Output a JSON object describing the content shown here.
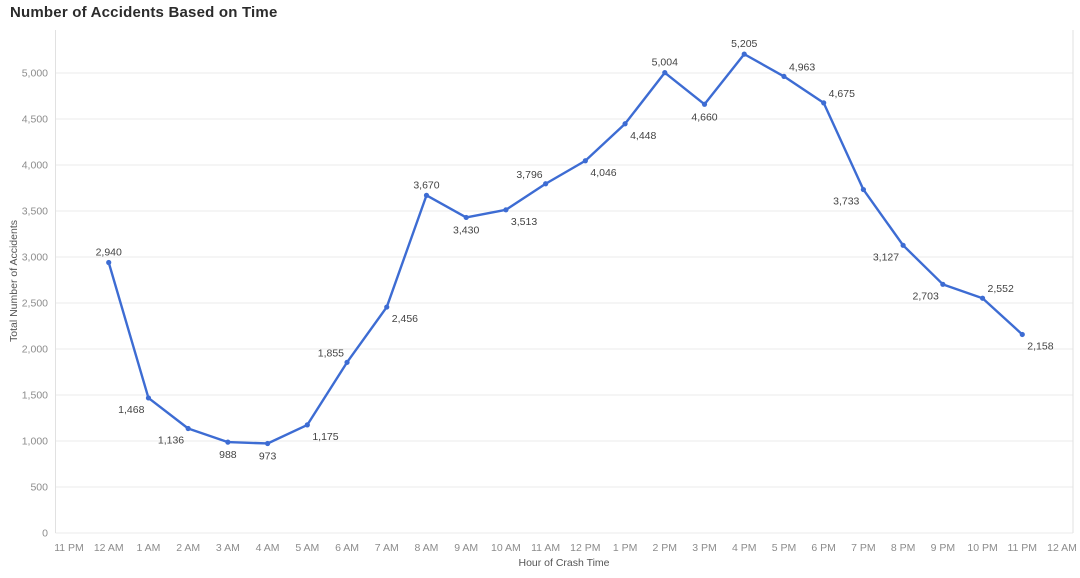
{
  "chart_data": {
    "type": "line",
    "title": "Number of Accidents Based on Time",
    "xlabel": "Hour of Crash Time",
    "ylabel": "Total Number of Accidents",
    "categories": [
      "12 AM",
      "1 AM",
      "2 AM",
      "3 AM",
      "4 AM",
      "5 AM",
      "6 AM",
      "7 AM",
      "8 AM",
      "9 AM",
      "10 AM",
      "11 AM",
      "12 PM",
      "1 PM",
      "2 PM",
      "3 PM",
      "4 PM",
      "5 PM",
      "6 PM",
      "7 PM",
      "8 PM",
      "9 PM",
      "10 PM",
      "11 PM"
    ],
    "values": [
      2940,
      1468,
      1136,
      988,
      973,
      1175,
      1855,
      2456,
      3670,
      3430,
      3513,
      3796,
      4046,
      4448,
      5004,
      4660,
      5205,
      4963,
      4675,
      3733,
      3127,
      2703,
      2552,
      2158
    ],
    "value_labels": [
      "2,940",
      "1,468",
      "1,136",
      "988",
      "973",
      "1,175",
      "1,855",
      "2,456",
      "3,670",
      "3,430",
      "3,513",
      "3,796",
      "4,046",
      "4,448",
      "5,004",
      "4,660",
      "5,205",
      "4,963",
      "4,675",
      "3,733",
      "3,127",
      "2,703",
      "2,552",
      "2,158"
    ],
    "x_axis_ticks": [
      "11 PM",
      "12 AM",
      "1 AM",
      "2 AM",
      "3 AM",
      "4 AM",
      "5 AM",
      "6 AM",
      "7 AM",
      "8 AM",
      "9 AM",
      "10 AM",
      "11 AM",
      "12 PM",
      "1 PM",
      "2 PM",
      "3 PM",
      "4 PM",
      "5 PM",
      "6 PM",
      "7 PM",
      "8 PM",
      "9 PM",
      "10 PM",
      "11 PM",
      "12 AM"
    ],
    "y_tick_labels": [
      "0",
      "500",
      "1,000",
      "1,500",
      "2,000",
      "2,500",
      "3,000",
      "3,500",
      "4,000",
      "4,500",
      "5,000"
    ],
    "y_tick_values": [
      0,
      500,
      1000,
      1500,
      2000,
      2500,
      3000,
      3500,
      4000,
      4500,
      5000
    ],
    "ylim": [
      0,
      5470
    ],
    "grid": "horizontal",
    "legend": "none",
    "line_color": "#3d6cd3",
    "colors": {
      "background": "#ffffff",
      "title": "#2b2b2b",
      "axis_title": "#555555",
      "tick_label": "#8c8c8c",
      "data_label": "#434343",
      "gridline": "#ebebeb",
      "plot_border": "#e1e1e1"
    }
  }
}
